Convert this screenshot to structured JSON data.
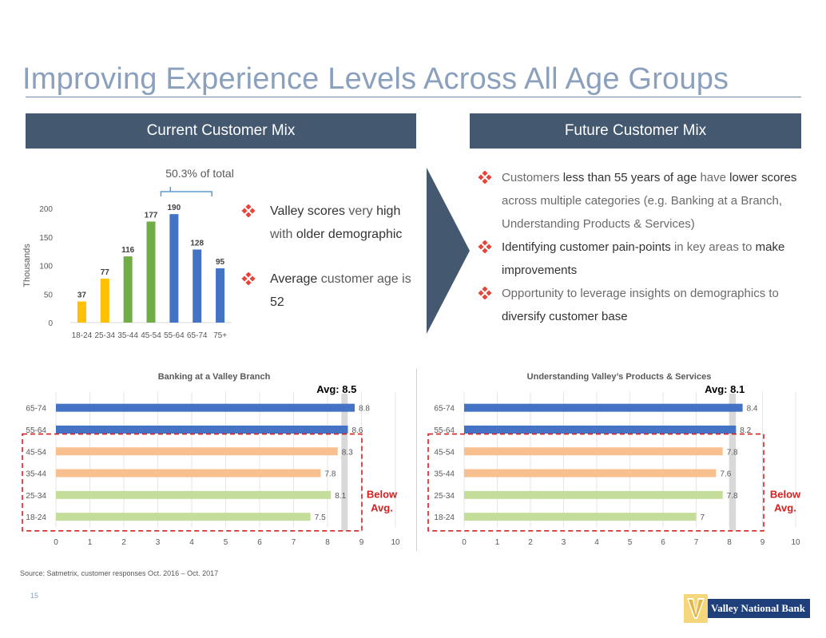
{
  "header": {
    "title": "Improving Experience Levels Across All Age Groups",
    "left_banner": "Current Customer Mix",
    "right_banner": "Future Customer Mix"
  },
  "age_chart": {
    "bracket_label": "50.3% of total",
    "y_axis_label": "Thousands"
  },
  "mid_bullets": {
    "b1_p1": "Valley scores",
    "b1_p2": " very ",
    "b1_p3": "high",
    "b1_p4": " with ",
    "b1_p5": "older demographic",
    "b2_p1": "Average",
    "b2_p2": " customer age is ",
    "b2_p3": "52"
  },
  "right_bullets": {
    "b1_p1": "Customers ",
    "b1_p2": "less than 55 years of age",
    "b1_p3": " have ",
    "b1_p4": "lower scores",
    "b1_p5": " across multiple categories (e.g. Banking at a Branch, Understanding Products & Services)",
    "b2_p1": "Identifying customer pain-points",
    "b2_p2": " in key areas to ",
    "b2_p3": "make improvements",
    "b3_p1": "Opportunity to leverage insights on demographics to ",
    "b3_p2": "diversify customer base"
  },
  "footer": {
    "source": "Source: Satmetrix, customer responses Oct. 2016 – Oct. 2017",
    "page_number": "15",
    "logo_text": "Valley National Bank"
  },
  "colors": {
    "title": "#8aa0bd",
    "banner": "#445870",
    "older": "#4472c4",
    "middle": "#f8c08f",
    "young": "#c5dd9a",
    "col_yellow": "#ffc000",
    "col_green": "#70ad47",
    "col_blue": "#4472c4",
    "avg": "#d9d9d9",
    "diamond": "#e8443a",
    "below": "#d62020"
  },
  "chart_data": [
    {
      "type": "bar",
      "categories": [
        "18-24",
        "25-34",
        "35-44",
        "45-54",
        "55-64",
        "65-74",
        "75+"
      ],
      "values": [
        37,
        77,
        116,
        177,
        190,
        128,
        95
      ],
      "ylabel": "Thousands",
      "ylim": [
        0,
        200
      ],
      "yticks": [
        0,
        50,
        100,
        150,
        200
      ],
      "bar_colors": [
        "#ffc000",
        "#ffc000",
        "#70ad47",
        "#70ad47",
        "#4472c4",
        "#4472c4",
        "#4472c4"
      ],
      "annotation": "50.3% of total",
      "grid": false
    },
    {
      "type": "bar",
      "orientation": "horizontal",
      "title": "Banking at a Valley Branch",
      "categories": [
        "65-74",
        "55-64",
        "45-54",
        "35-44",
        "25-34",
        "18-24"
      ],
      "values": [
        8.8,
        8.6,
        8.3,
        7.8,
        8.1,
        7.5
      ],
      "xlim": [
        0,
        10
      ],
      "xticks": [
        0,
        1,
        2,
        3,
        4,
        5,
        6,
        7,
        8,
        9,
        10
      ],
      "average": 8.5,
      "average_label": "Avg: 8.5",
      "below_label": [
        "Below",
        "Avg."
      ],
      "bar_colors": [
        "#4472c4",
        "#4472c4",
        "#f8c08f",
        "#f8c08f",
        "#c5dd9a",
        "#c5dd9a"
      ],
      "grid": true
    },
    {
      "type": "bar",
      "orientation": "horizontal",
      "title": "Understanding Valley’s Products & Services",
      "categories": [
        "65-74",
        "55-64",
        "45-54",
        "35-44",
        "25-34",
        "18-24"
      ],
      "values": [
        8.4,
        8.2,
        7.8,
        7.6,
        7.8,
        7
      ],
      "xlim": [
        0,
        10
      ],
      "xticks": [
        0,
        1,
        2,
        3,
        4,
        5,
        6,
        7,
        8,
        9,
        10
      ],
      "average": 8.1,
      "average_label": "Avg: 8.1",
      "below_label": [
        "Below",
        "Avg."
      ],
      "bar_colors": [
        "#4472c4",
        "#4472c4",
        "#f8c08f",
        "#f8c08f",
        "#c5dd9a",
        "#c5dd9a"
      ],
      "grid": true
    }
  ]
}
